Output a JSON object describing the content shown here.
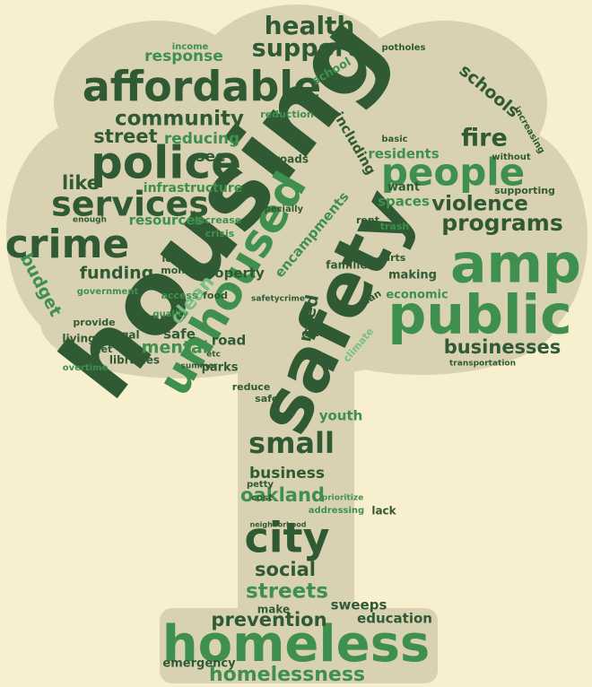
{
  "words": [
    {
      "text": "housing",
      "color": "#2f5a33"
    },
    {
      "text": "safety",
      "color": "#2f5a33"
    },
    {
      "text": "affordable",
      "color": "#2f5a33"
    },
    {
      "text": "police",
      "color": "#2f5a33"
    },
    {
      "text": "services",
      "color": "#2f5a33"
    },
    {
      "text": "crime",
      "color": "#2f5a33"
    },
    {
      "text": "people",
      "color": "#3f8f4e"
    },
    {
      "text": "amp",
      "color": "#3f8f4e"
    },
    {
      "text": "public",
      "color": "#3f8f4e"
    },
    {
      "text": "unhoused",
      "color": "#3f8f4e"
    },
    {
      "text": "homeless",
      "color": "#3f8f4e"
    },
    {
      "text": "homelessness",
      "color": "#3f8f4e"
    },
    {
      "text": "prevention",
      "color": "#2f5a33"
    },
    {
      "text": "city",
      "color": "#2f5a33"
    },
    {
      "text": "small",
      "color": "#2f5a33"
    },
    {
      "text": "oakland",
      "color": "#3f8f4e"
    },
    {
      "text": "business",
      "color": "#2f5a33"
    },
    {
      "text": "social",
      "color": "#2f5a33"
    },
    {
      "text": "streets",
      "color": "#3f8f4e"
    },
    {
      "text": "health",
      "color": "#2f5a33"
    },
    {
      "text": "support",
      "color": "#2f5a33"
    },
    {
      "text": "community",
      "color": "#2f5a33"
    },
    {
      "text": "street",
      "color": "#2f5a33"
    },
    {
      "text": "fire",
      "color": "#2f5a33"
    },
    {
      "text": "violence",
      "color": "#2f5a33"
    },
    {
      "text": "programs",
      "color": "#2f5a33"
    },
    {
      "text": "schools",
      "color": "#2f5a33"
    },
    {
      "text": "like",
      "color": "#2f5a33"
    },
    {
      "text": "funding",
      "color": "#2f5a33"
    },
    {
      "text": "budget",
      "color": "#3f8f4e"
    },
    {
      "text": "businesses",
      "color": "#2f5a33"
    },
    {
      "text": "mental",
      "color": "#3f8f4e"
    },
    {
      "text": "response",
      "color": "#3f8f4e"
    },
    {
      "text": "reducing",
      "color": "#3f8f4e"
    },
    {
      "text": "resources",
      "color": "#3f8f4e"
    },
    {
      "text": "infrastructure",
      "color": "#3f8f4e"
    },
    {
      "text": "property",
      "color": "#2f5a33"
    },
    {
      "text": "care",
      "color": "#2f5a33"
    },
    {
      "text": "safe",
      "color": "#2f5a33"
    },
    {
      "text": "parks",
      "color": "#2f5a33"
    },
    {
      "text": "road",
      "color": "#2f5a33"
    },
    {
      "text": "clean",
      "color": "#79bd85"
    },
    {
      "text": "need",
      "color": "#2f5a33"
    },
    {
      "text": "youth",
      "color": "#3f8f4e"
    },
    {
      "text": "residents",
      "color": "#3f8f4e"
    },
    {
      "text": "spaces",
      "color": "#3f8f4e"
    },
    {
      "text": "want",
      "color": "#2f5a33"
    },
    {
      "text": "economic",
      "color": "#3f8f4e"
    },
    {
      "text": "making",
      "color": "#2f5a33"
    },
    {
      "text": "education",
      "color": "#2f5a33"
    },
    {
      "text": "sweeps",
      "color": "#2f5a33"
    },
    {
      "text": "emergency",
      "color": "#2f5a33"
    },
    {
      "text": "make",
      "color": "#2f5a33"
    },
    {
      "text": "libraries",
      "color": "#2f5a33"
    },
    {
      "text": "living",
      "color": "#2f5a33"
    },
    {
      "text": "government",
      "color": "#3f8f4e"
    },
    {
      "text": "families",
      "color": "#2f5a33"
    },
    {
      "text": "food",
      "color": "#2f5a33"
    },
    {
      "text": "see",
      "color": "#2f5a33"
    },
    {
      "text": "roads",
      "color": "#2f5a33"
    },
    {
      "text": "including",
      "color": "#2f5a33"
    },
    {
      "text": "transportation",
      "color": "#2f5a33"
    },
    {
      "text": "especially",
      "color": "#2f5a33"
    },
    {
      "text": "encampments",
      "color": "#3f8f4e"
    },
    {
      "text": "local",
      "color": "#2f5a33"
    },
    {
      "text": "money",
      "color": "#2f5a33"
    },
    {
      "text": "crisis",
      "color": "#3f8f4e"
    },
    {
      "text": "increase",
      "color": "#3f8f4e"
    },
    {
      "text": "access",
      "color": "#3f8f4e"
    },
    {
      "text": "quality",
      "color": "#3f8f4e"
    },
    {
      "text": "illegal",
      "color": "#2f5a33"
    },
    {
      "text": "provide",
      "color": "#2f5a33"
    },
    {
      "text": "lack",
      "color": "#2f5a33"
    },
    {
      "text": "addressing",
      "color": "#3f8f4e"
    },
    {
      "text": "prioritize",
      "color": "#3f8f4e"
    },
    {
      "text": "cost",
      "color": "#2f5a33"
    },
    {
      "text": "petty",
      "color": "#2f5a33"
    },
    {
      "text": "neighborhood",
      "color": "#2f5a33"
    },
    {
      "text": "supporting",
      "color": "#2f5a33"
    },
    {
      "text": "increasing",
      "color": "#2f5a33"
    },
    {
      "text": "income",
      "color": "#3f8f4e"
    },
    {
      "text": "potholes",
      "color": "#2f5a33"
    },
    {
      "text": "school",
      "color": "#3f8f4e"
    },
    {
      "text": "reduction",
      "color": "#3f8f4e"
    },
    {
      "text": "without",
      "color": "#2f5a33"
    },
    {
      "text": "basic",
      "color": "#2f5a33"
    },
    {
      "text": "low",
      "color": "#2f5a33"
    },
    {
      "text": "reduce",
      "color": "#2f5a33"
    },
    {
      "text": "safer",
      "color": "#2f5a33"
    },
    {
      "text": "climate",
      "color": "#79bd85"
    },
    {
      "text": "trash",
      "color": "#3f8f4e"
    },
    {
      "text": "rent",
      "color": "#2f5a33"
    },
    {
      "text": "arts",
      "color": "#2f5a33"
    },
    {
      "text": "overtime",
      "color": "#3f8f4e"
    },
    {
      "text": "get",
      "color": "#2f5a33"
    },
    {
      "text": "can",
      "color": "#2f5a33"
    },
    {
      "text": "summer",
      "color": "#2f5a33"
    },
    {
      "text": "enough",
      "color": "#2f5a33"
    },
    {
      "text": "safetycrime",
      "color": "#2f5a33"
    },
    {
      "text": "etc",
      "color": "#2f5a33"
    }
  ]
}
